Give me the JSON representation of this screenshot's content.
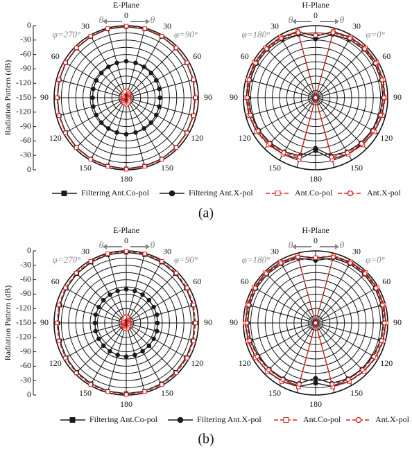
{
  "captions": [
    "(a)",
    "(b)"
  ],
  "chart_data": [
    {
      "type": "polar",
      "title": "E-Plane",
      "ylabel": "Radiation Pattern (dB)",
      "phi_left": "φ=270°",
      "phi_right": "φ=90°",
      "theta_left": "θ",
      "theta_right": "θ",
      "rlim": [
        -150,
        0
      ],
      "rticks": [
        0,
        -30,
        -60,
        -90,
        -120,
        -150
      ],
      "rgrid": [
        -135,
        -120,
        -105,
        -90,
        -75,
        -60,
        -45,
        -30,
        -15,
        0
      ],
      "theta_ticks": [
        0,
        30,
        60,
        90,
        120,
        150,
        180,
        {
          "value": 210,
          "label": "150"
        },
        {
          "value": 240,
          "label": "120"
        },
        {
          "value": 270,
          "label": "90"
        },
        {
          "value": 300,
          "label": "60"
        },
        {
          "value": 330,
          "label": "30"
        }
      ],
      "theta_grid": [
        0,
        15,
        30,
        45,
        60,
        75,
        90,
        105,
        120,
        135,
        150,
        165,
        180,
        195,
        210,
        225,
        240,
        255,
        270,
        285,
        300,
        315,
        330,
        345
      ],
      "theta": [
        0,
        15,
        30,
        45,
        60,
        75,
        90,
        105,
        120,
        135,
        150,
        165,
        180,
        195,
        210,
        225,
        240,
        255,
        270,
        285,
        300,
        315,
        330,
        345
      ],
      "series": [
        {
          "name": "Filtering Ant.Co-pol",
          "color": "#1a1a1a",
          "marker": "square",
          "filled": true,
          "dashed": false,
          "values": [
            -2,
            -2,
            -3,
            -4,
            -5,
            -6,
            -7,
            -6,
            -5,
            -4,
            -3,
            -3,
            -2,
            -3,
            -3,
            -4,
            -5,
            -6,
            -7,
            -6,
            -5,
            -4,
            -3,
            -2
          ]
        },
        {
          "name": "Filtering Ant.X-pol",
          "color": "#1a1a1a",
          "marker": "circle",
          "filled": true,
          "dashed": false,
          "values": [
            -74,
            -75,
            -76,
            -77,
            -78,
            -79,
            -80,
            -79,
            -78,
            -77,
            -76,
            -75,
            -74,
            -75,
            -76,
            -77,
            -78,
            -79,
            -80,
            -79,
            -78,
            -77,
            -76,
            -75
          ]
        },
        {
          "name": "Ant.Co-pol",
          "color": "#e0211b",
          "marker": "square",
          "filled": false,
          "dashed": true,
          "values": [
            -1,
            -1,
            -2,
            -3,
            -4,
            -5,
            -6,
            -5,
            -4,
            -3,
            -2,
            -2,
            -1,
            -2,
            -2,
            -3,
            -4,
            -5,
            -6,
            -5,
            -4,
            -3,
            -2,
            -1
          ]
        },
        {
          "name": "Ant.X-pol",
          "color": "#e0211b",
          "marker": "circle",
          "filled": false,
          "dashed": true,
          "values": [
            -135,
            -137,
            -139,
            -141,
            -143,
            -144,
            -145,
            -144,
            -143,
            -141,
            -139,
            -137,
            -136,
            -137,
            -139,
            -141,
            -143,
            -144,
            -145,
            -144,
            -143,
            -141,
            -139,
            -137
          ]
        }
      ]
    },
    {
      "type": "polar",
      "title": "H-Plane",
      "phi_left": "φ=180°",
      "phi_right": "φ=0°",
      "theta_left": "θ",
      "theta_right": "θ",
      "rlim": [
        -150,
        0
      ],
      "rgrid": [
        -135,
        -120,
        -105,
        -90,
        -75,
        -60,
        -45,
        -30,
        -15,
        0
      ],
      "theta_ticks": [
        0,
        30,
        60,
        90,
        120,
        150,
        180,
        {
          "value": 210,
          "label": "150"
        },
        {
          "value": 240,
          "label": "120"
        },
        {
          "value": 270,
          "label": "90"
        },
        {
          "value": 300,
          "label": "60"
        },
        {
          "value": 330,
          "label": "30"
        }
      ],
      "theta_grid": [
        0,
        15,
        30,
        45,
        60,
        75,
        90,
        105,
        120,
        135,
        150,
        165,
        180,
        195,
        210,
        225,
        240,
        255,
        270,
        285,
        300,
        315,
        330,
        345
      ],
      "theta": [
        0,
        15,
        30,
        45,
        60,
        75,
        90,
        105,
        120,
        135,
        150,
        165,
        180,
        195,
        210,
        225,
        240,
        255,
        270,
        285,
        300,
        315,
        330,
        345
      ],
      "series": [
        {
          "color": "#1a1a1a",
          "marker": "square",
          "filled": true,
          "dashed": false,
          "values": [
            -22,
            -8,
            -5,
            -4,
            -4,
            -5,
            -6,
            -7,
            -9,
            -12,
            -15,
            -18,
            -40,
            -18,
            -15,
            -12,
            -9,
            -7,
            -6,
            -5,
            -4,
            -4,
            -5,
            -8
          ]
        },
        {
          "color": "#1a1a1a",
          "marker": "circle",
          "filled": true,
          "dashed": false,
          "values": [
            -28,
            -14,
            -10,
            -8,
            -8,
            -9,
            -10,
            -12,
            -14,
            -17,
            -20,
            -25,
            -45,
            -25,
            -20,
            -17,
            -14,
            -12,
            -10,
            -9,
            -8,
            -8,
            -10,
            -14
          ]
        },
        {
          "color": "#e0211b",
          "marker": "square",
          "filled": false,
          "dashed": true,
          "values": [
            -20,
            -7,
            -4,
            -3,
            -3,
            -4,
            -5,
            -6,
            -8,
            -11,
            -14,
            -17,
            -150,
            -17,
            -14,
            -11,
            -8,
            -6,
            -5,
            -4,
            -3,
            -3,
            -4,
            -7
          ]
        },
        {
          "color": "#e0211b",
          "marker": "circle",
          "filled": false,
          "dashed": true,
          "values": [
            -150,
            -10,
            -7,
            -6,
            -6,
            -7,
            -8,
            -10,
            -12,
            -15,
            -18,
            -22,
            -150,
            -22,
            -18,
            -15,
            -12,
            -10,
            -8,
            -7,
            -6,
            -6,
            -7,
            -10
          ]
        }
      ]
    },
    {
      "type": "polar",
      "title": "E-Plane",
      "ylabel": "Radiation Pattern (dB)",
      "phi_left": "φ=270°",
      "phi_right": "φ=90°",
      "theta_left": "θ",
      "theta_right": "θ",
      "rlim": [
        -150,
        0
      ],
      "rticks": [
        0,
        -30,
        -60,
        -90,
        -120,
        -150
      ],
      "rgrid": [
        -135,
        -120,
        -105,
        -90,
        -75,
        -60,
        -45,
        -30,
        -15,
        0
      ],
      "theta_ticks": [
        0,
        30,
        60,
        90,
        120,
        150,
        180,
        {
          "value": 210,
          "label": "150"
        },
        {
          "value": 240,
          "label": "120"
        },
        {
          "value": 270,
          "label": "90"
        },
        {
          "value": 300,
          "label": "60"
        },
        {
          "value": 330,
          "label": "30"
        }
      ],
      "theta_grid": [
        0,
        15,
        30,
        45,
        60,
        75,
        90,
        105,
        120,
        135,
        150,
        165,
        180,
        195,
        210,
        225,
        240,
        255,
        270,
        285,
        300,
        315,
        330,
        345
      ],
      "theta": [
        0,
        15,
        30,
        45,
        60,
        75,
        90,
        105,
        120,
        135,
        150,
        165,
        180,
        195,
        210,
        225,
        240,
        255,
        270,
        285,
        300,
        315,
        330,
        345
      ],
      "series": [
        {
          "name": "Filtering Ant.Co-pol",
          "color": "#1a1a1a",
          "marker": "square",
          "filled": true,
          "dashed": false,
          "values": [
            -3,
            -3,
            -4,
            -5,
            -6,
            -7,
            -8,
            -7,
            -6,
            -5,
            -4,
            -3,
            -3,
            -3,
            -4,
            -5,
            -6,
            -7,
            -8,
            -7,
            -6,
            -5,
            -4,
            -3
          ]
        },
        {
          "name": "Filtering Ant.X-pol",
          "color": "#1a1a1a",
          "marker": "circle",
          "filled": true,
          "dashed": false,
          "values": [
            -80,
            -81,
            -82,
            -83,
            -84,
            -84,
            -85,
            -84,
            -84,
            -83,
            -82,
            -81,
            -80,
            -81,
            -82,
            -83,
            -84,
            -84,
            -85,
            -84,
            -84,
            -83,
            -82,
            -81
          ]
        },
        {
          "name": "Ant.Co-pol",
          "color": "#e0211b",
          "marker": "square",
          "filled": false,
          "dashed": true,
          "values": [
            -1,
            -1,
            -2,
            -3,
            -4,
            -5,
            -6,
            -5,
            -4,
            -3,
            -2,
            -2,
            -1,
            -2,
            -2,
            -3,
            -4,
            -5,
            -6,
            -5,
            -4,
            -3,
            -2,
            -1
          ]
        },
        {
          "name": "Ant.X-pol",
          "color": "#e0211b",
          "marker": "circle",
          "filled": false,
          "dashed": true,
          "values": [
            -136,
            -138,
            -140,
            -142,
            -143,
            -144,
            -145,
            -144,
            -143,
            -142,
            -140,
            -138,
            -137,
            -138,
            -140,
            -142,
            -143,
            -144,
            -145,
            -144,
            -143,
            -142,
            -140,
            -138
          ]
        }
      ]
    },
    {
      "type": "polar",
      "title": "H-Plane",
      "phi_left": "φ=180°",
      "phi_right": "φ=0°",
      "theta_left": "θ",
      "theta_right": "θ",
      "rlim": [
        -150,
        0
      ],
      "rgrid": [
        -135,
        -120,
        -105,
        -90,
        -75,
        -60,
        -45,
        -30,
        -15,
        0
      ],
      "theta_ticks": [
        0,
        30,
        60,
        90,
        120,
        150,
        180,
        {
          "value": 210,
          "label": "150"
        },
        {
          "value": 240,
          "label": "120"
        },
        {
          "value": 270,
          "label": "90"
        },
        {
          "value": 300,
          "label": "60"
        },
        {
          "value": 330,
          "label": "30"
        }
      ],
      "theta_grid": [
        0,
        15,
        30,
        45,
        60,
        75,
        90,
        105,
        120,
        135,
        150,
        165,
        180,
        195,
        210,
        225,
        240,
        255,
        270,
        285,
        300,
        315,
        330,
        345
      ],
      "theta": [
        0,
        15,
        30,
        45,
        60,
        75,
        90,
        105,
        120,
        135,
        150,
        165,
        180,
        195,
        210,
        225,
        240,
        255,
        270,
        285,
        300,
        315,
        330,
        345
      ],
      "series": [
        {
          "color": "#1a1a1a",
          "marker": "square",
          "filled": true,
          "dashed": false,
          "values": [
            -15,
            -6,
            -4,
            -3,
            -3,
            -4,
            -4,
            -5,
            -6,
            -8,
            -10,
            -13,
            -25,
            -13,
            -10,
            -8,
            -6,
            -5,
            -4,
            -4,
            -3,
            -3,
            -4,
            -6
          ]
        },
        {
          "color": "#1a1a1a",
          "marker": "circle",
          "filled": true,
          "dashed": false,
          "values": [
            -20,
            -10,
            -8,
            -7,
            -7,
            -8,
            -9,
            -10,
            -12,
            -14,
            -16,
            -20,
            -35,
            -20,
            -16,
            -14,
            -12,
            -10,
            -9,
            -8,
            -7,
            -7,
            -8,
            -10
          ]
        },
        {
          "color": "#e0211b",
          "marker": "square",
          "filled": false,
          "dashed": true,
          "values": [
            -14,
            -5,
            -3,
            -2,
            -2,
            -3,
            -3,
            -4,
            -5,
            -7,
            -9,
            -12,
            -150,
            -12,
            -9,
            -7,
            -5,
            -4,
            -3,
            -3,
            -2,
            -2,
            -3,
            -5
          ]
        },
        {
          "color": "#e0211b",
          "marker": "circle",
          "filled": false,
          "dashed": true,
          "values": [
            -150,
            -8,
            -6,
            -5,
            -5,
            -6,
            -7,
            -8,
            -10,
            -12,
            -14,
            -18,
            -150,
            -18,
            -14,
            -12,
            -10,
            -8,
            -7,
            -6,
            -5,
            -5,
            -6,
            -8
          ]
        }
      ]
    }
  ]
}
